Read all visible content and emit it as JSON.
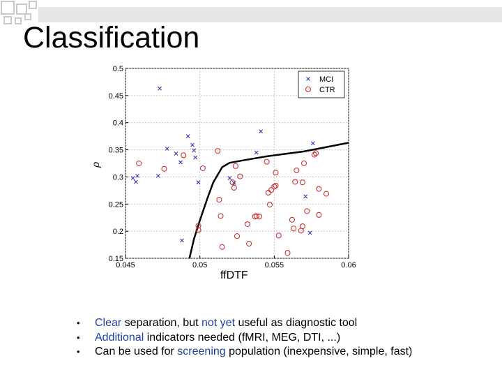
{
  "slide": {
    "title": "Classification",
    "bullets": [
      [
        {
          "text": "Clear",
          "highlight": true
        },
        {
          "text": " separation, but ",
          "highlight": false
        },
        {
          "text": "not yet",
          "highlight": true
        },
        {
          "text": " useful as diagnostic tool",
          "highlight": false
        }
      ],
      [
        {
          "text": "Additional",
          "highlight": true
        },
        {
          "text": " indicators needed (fMRI, MEG, DTI, ...)",
          "highlight": false
        }
      ],
      [
        {
          "text": "Can be used for ",
          "highlight": false
        },
        {
          "text": "screening",
          "highlight": true
        },
        {
          "text": " population (inexpensive, simple, fast)",
          "highlight": false
        }
      ]
    ],
    "colors": {
      "highlight": "#1f3fa8",
      "decoration": "#c9c9c9"
    }
  },
  "chart_data": {
    "type": "scatter",
    "title": "",
    "xlabel": "ffDTF",
    "ylabel": "ρ",
    "xlim": [
      0.045,
      0.06
    ],
    "ylim": [
      0.15,
      0.5
    ],
    "xticks": [
      "0.045",
      "0.05",
      "0.055",
      "0.06"
    ],
    "yticks": [
      "0.15",
      "0.2",
      "0.25",
      "0.3",
      "0.35",
      "0.4",
      "0.45",
      "0.5"
    ],
    "grid": true,
    "legend": "top-right",
    "series": [
      {
        "name": "MCI",
        "marker": "x",
        "color": "#3333bb",
        "points": [
          [
            0.0473,
            0.463
          ],
          [
            0.0455,
            0.298
          ],
          [
            0.0457,
            0.291
          ],
          [
            0.0458,
            0.302
          ],
          [
            0.0472,
            0.302
          ],
          [
            0.0478,
            0.352
          ],
          [
            0.0484,
            0.343
          ],
          [
            0.0487,
            0.327
          ],
          [
            0.0492,
            0.375
          ],
          [
            0.0495,
            0.359
          ],
          [
            0.0496,
            0.349
          ],
          [
            0.0497,
            0.336
          ],
          [
            0.0499,
            0.29
          ],
          [
            0.0488,
            0.183
          ],
          [
            0.052,
            0.298
          ],
          [
            0.0523,
            0.289
          ],
          [
            0.0538,
            0.345
          ],
          [
            0.0541,
            0.384
          ],
          [
            0.0571,
            0.264
          ],
          [
            0.0574,
            0.197
          ],
          [
            0.0576,
            0.362
          ]
        ]
      },
      {
        "name": "CTR",
        "marker": "o",
        "color": "#cc3333",
        "points": [
          [
            0.0459,
            0.325
          ],
          [
            0.0476,
            0.315
          ],
          [
            0.0489,
            0.34
          ],
          [
            0.0499,
            0.21
          ],
          [
            0.0499,
            0.202
          ],
          [
            0.0502,
            0.316
          ],
          [
            0.0512,
            0.348
          ],
          [
            0.0513,
            0.258
          ],
          [
            0.0514,
            0.228
          ],
          [
            0.0515,
            0.171
          ],
          [
            0.0522,
            0.29
          ],
          [
            0.0523,
            0.28
          ],
          [
            0.0524,
            0.32
          ],
          [
            0.0525,
            0.191
          ],
          [
            0.0527,
            0.301
          ],
          [
            0.0532,
            0.213
          ],
          [
            0.0533,
            0.177
          ],
          [
            0.0537,
            0.227
          ],
          [
            0.0538,
            0.228
          ],
          [
            0.054,
            0.227
          ],
          [
            0.0545,
            0.328
          ],
          [
            0.0546,
            0.271
          ],
          [
            0.0547,
            0.249
          ],
          [
            0.0548,
            0.276
          ],
          [
            0.055,
            0.282
          ],
          [
            0.0551,
            0.284
          ],
          [
            0.0551,
            0.308
          ],
          [
            0.0553,
            0.192
          ],
          [
            0.0559,
            0.16
          ],
          [
            0.0562,
            0.221
          ],
          [
            0.0563,
            0.205
          ],
          [
            0.0564,
            0.291
          ],
          [
            0.0565,
            0.312
          ],
          [
            0.0568,
            0.201
          ],
          [
            0.0569,
            0.209
          ],
          [
            0.0569,
            0.29
          ],
          [
            0.057,
            0.325
          ],
          [
            0.0572,
            0.237
          ],
          [
            0.0577,
            0.341
          ],
          [
            0.0578,
            0.344
          ],
          [
            0.058,
            0.278
          ],
          [
            0.058,
            0.23
          ],
          [
            0.0585,
            0.269
          ]
        ]
      },
      {
        "name": "",
        "type": "line",
        "color": "#000000",
        "points": [
          [
            0.0493,
            0.15
          ],
          [
            0.0496,
            0.185
          ],
          [
            0.05,
            0.22
          ],
          [
            0.0505,
            0.26
          ],
          [
            0.0509,
            0.29
          ],
          [
            0.0515,
            0.318
          ],
          [
            0.052,
            0.326
          ],
          [
            0.053,
            0.331
          ],
          [
            0.0545,
            0.338
          ],
          [
            0.057,
            0.347
          ],
          [
            0.06,
            0.363
          ]
        ]
      }
    ]
  }
}
